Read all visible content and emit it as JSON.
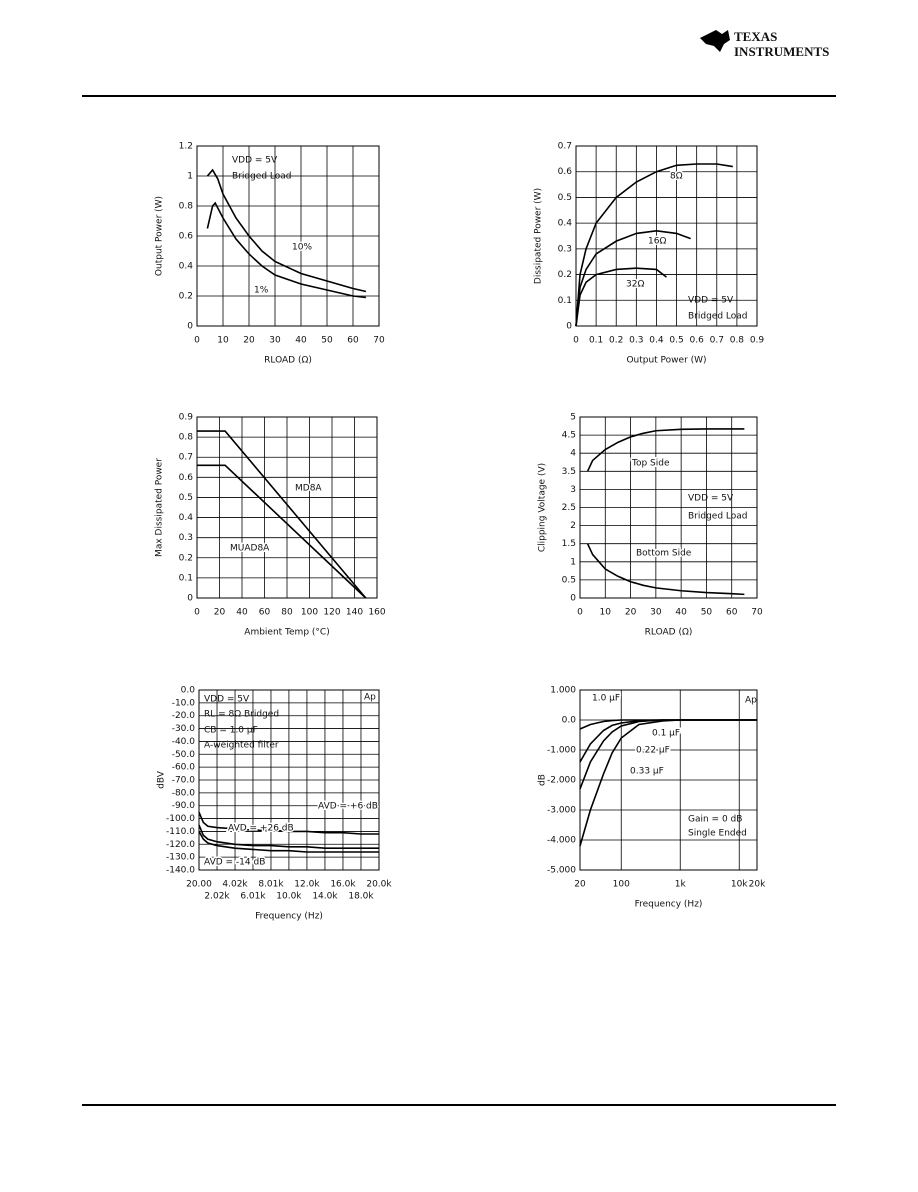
{
  "header": {
    "logo_line1": "TEXAS",
    "logo_line2": "INSTRUMENTS"
  },
  "chart_data": [
    {
      "type": "line",
      "ylabel": "Output Power (W)",
      "xlabel": "RLOAD (Ω)",
      "annotations": [
        "VDD = 5V",
        "Bridged Load"
      ],
      "xlim": [
        0,
        70
      ],
      "xticks": [
        0,
        10,
        20,
        30,
        40,
        50,
        60,
        70
      ],
      "ylim": [
        0,
        1.2
      ],
      "yticks": [
        0,
        0.2,
        0.4,
        0.6,
        0.8,
        1,
        1.2
      ],
      "grid": true,
      "series": [
        {
          "name": "10%",
          "color": "#000000",
          "x": [
            4,
            6,
            8,
            10,
            15,
            20,
            25,
            30,
            40,
            50,
            60,
            65
          ],
          "values": [
            1.0,
            1.04,
            0.98,
            0.88,
            0.72,
            0.6,
            0.5,
            0.43,
            0.35,
            0.3,
            0.25,
            0.23
          ]
        },
        {
          "name": "1%",
          "color": "#000000",
          "x": [
            4,
            6,
            7,
            10,
            15,
            20,
            25,
            30,
            40,
            50,
            60,
            65
          ],
          "values": [
            0.65,
            0.8,
            0.82,
            0.72,
            0.58,
            0.48,
            0.4,
            0.34,
            0.28,
            0.24,
            0.2,
            0.19
          ]
        }
      ]
    },
    {
      "type": "line",
      "ylabel": "Dissipated Power (W)",
      "xlabel": "Output Power (W)",
      "annotations": [
        "VDD = 5V",
        "Bridged Load"
      ],
      "xlim": [
        0,
        0.9
      ],
      "xticks": [
        0,
        0.1,
        0.2,
        0.3,
        0.4,
        0.5,
        0.6,
        0.7,
        0.8,
        0.9
      ],
      "ylim": [
        0,
        0.7
      ],
      "yticks": [
        0,
        0.1,
        0.2,
        0.3,
        0.4,
        0.5,
        0.6,
        0.7
      ],
      "grid": true,
      "series": [
        {
          "name": "8Ω",
          "color": "#000000",
          "x": [
            0,
            0.02,
            0.05,
            0.1,
            0.2,
            0.3,
            0.4,
            0.5,
            0.6,
            0.7,
            0.78
          ],
          "values": [
            0,
            0.2,
            0.3,
            0.4,
            0.5,
            0.56,
            0.6,
            0.625,
            0.63,
            0.63,
            0.62
          ]
        },
        {
          "name": "16Ω",
          "color": "#000000",
          "x": [
            0,
            0.02,
            0.05,
            0.1,
            0.2,
            0.3,
            0.4,
            0.5,
            0.57
          ],
          "values": [
            0,
            0.15,
            0.22,
            0.28,
            0.33,
            0.36,
            0.37,
            0.36,
            0.34
          ]
        },
        {
          "name": "32Ω",
          "color": "#000000",
          "x": [
            0,
            0.02,
            0.05,
            0.1,
            0.2,
            0.3,
            0.4,
            0.45
          ],
          "values": [
            0,
            0.12,
            0.17,
            0.2,
            0.22,
            0.225,
            0.22,
            0.19
          ]
        }
      ]
    },
    {
      "type": "line",
      "ylabel": "Max Dissipated Power",
      "xlabel": "Ambient Temp (°C)",
      "annotations": [],
      "xlim": [
        0,
        160
      ],
      "xticks": [
        0,
        20,
        40,
        60,
        80,
        100,
        120,
        140,
        160
      ],
      "ylim": [
        0,
        0.9
      ],
      "yticks": [
        0,
        0.1,
        0.2,
        0.3,
        0.4,
        0.5,
        0.6,
        0.7,
        0.8,
        0.9
      ],
      "grid": true,
      "series": [
        {
          "name": "MD8A",
          "color": "#000000",
          "x": [
            0,
            25,
            150
          ],
          "values": [
            0.83,
            0.83,
            0
          ]
        },
        {
          "name": "MUAD8A",
          "color": "#000000",
          "x": [
            0,
            25,
            150
          ],
          "values": [
            0.66,
            0.66,
            0
          ]
        }
      ]
    },
    {
      "type": "line",
      "ylabel": "Clipping Voltage (V)",
      "xlabel": "RLOAD (Ω)",
      "annotations": [
        "VDD = 5V",
        "Bridged Load"
      ],
      "xlim": [
        0,
        70
      ],
      "xticks": [
        0,
        10,
        20,
        30,
        40,
        50,
        60,
        70
      ],
      "ylim": [
        0,
        5
      ],
      "yticks": [
        0,
        0.5,
        1,
        1.5,
        2,
        2.5,
        3,
        3.5,
        4,
        4.5,
        5
      ],
      "grid": true,
      "series": [
        {
          "name": "Top Side",
          "color": "#000000",
          "x": [
            3,
            5,
            10,
            15,
            20,
            25,
            30,
            40,
            50,
            60,
            65
          ],
          "values": [
            3.5,
            3.8,
            4.1,
            4.3,
            4.45,
            4.55,
            4.62,
            4.66,
            4.67,
            4.67,
            4.67
          ]
        },
        {
          "name": "Bottom Side",
          "color": "#000000",
          "x": [
            3,
            5,
            10,
            15,
            20,
            25,
            30,
            40,
            50,
            60,
            65
          ],
          "values": [
            1.5,
            1.2,
            0.8,
            0.6,
            0.45,
            0.35,
            0.28,
            0.2,
            0.15,
            0.12,
            0.1
          ]
        }
      ]
    },
    {
      "type": "line",
      "ylabel": "dBV",
      "xlabel": "Frequency (Hz)",
      "annotations": [
        "VDD = 5V",
        "RL = 8Ω Bridged",
        "CB = 1.0 µF",
        "A-weighted filter",
        "Ap"
      ],
      "xlim": [
        20,
        20000
      ],
      "xticks": [
        {
          "value": 20,
          "label": "20.00"
        },
        {
          "value": 2020,
          "label": "2.02k"
        },
        {
          "value": 4020,
          "label": "4.02k"
        },
        {
          "value": 6010,
          "label": "6.01k"
        },
        {
          "value": 8010,
          "label": "8.01k"
        },
        {
          "value": 10000,
          "label": "10.0k"
        },
        {
          "value": 12000,
          "label": "12.0k"
        },
        {
          "value": 14000,
          "label": "14.0k"
        },
        {
          "value": 16000,
          "label": "16.0k"
        },
        {
          "value": 18000,
          "label": "18.0k"
        },
        {
          "value": 20000,
          "label": "20.0k"
        }
      ],
      "ylim": [
        -140,
        0
      ],
      "yticks": [
        {
          "value": 0,
          "label": "0.0"
        },
        {
          "value": -10,
          "label": "-10.0"
        },
        {
          "value": -20,
          "label": "-20.0"
        },
        {
          "value": -30,
          "label": "-30.0"
        },
        {
          "value": -40,
          "label": "-40.0"
        },
        {
          "value": -50,
          "label": "-50.0"
        },
        {
          "value": -60,
          "label": "-60.0"
        },
        {
          "value": -70,
          "label": "-70.0"
        },
        {
          "value": -80,
          "label": "-80.0"
        },
        {
          "value": -90,
          "label": "-90.0"
        },
        {
          "value": -100,
          "label": "-100.0"
        },
        {
          "value": -110,
          "label": "-110.0"
        },
        {
          "value": -120,
          "label": "-120.0"
        },
        {
          "value": -130,
          "label": "-130.0"
        },
        {
          "value": -140,
          "label": "-140.0"
        }
      ],
      "grid": true,
      "series": [
        {
          "name": "AVD = +26 dB",
          "color": "#000000",
          "x": [
            20,
            500,
            1000,
            2000,
            4000,
            6000,
            8000,
            10000,
            12000,
            14000,
            16000,
            18000,
            20000
          ],
          "values": [
            -95,
            -103,
            -106,
            -107,
            -108,
            -109,
            -109,
            -110,
            -110,
            -111,
            -111,
            -112,
            -112
          ]
        },
        {
          "name": "AVD = +6 dB",
          "color": "#000000",
          "x": [
            20,
            500,
            1000,
            2000,
            4000,
            6000,
            8000,
            10000,
            12000,
            14000,
            16000,
            18000,
            20000
          ],
          "values": [
            -105,
            -113,
            -116,
            -118,
            -120,
            -121,
            -121,
            -122,
            -122,
            -123,
            -123,
            -123,
            -123
          ]
        },
        {
          "name": "AVD = -14 dB",
          "color": "#000000",
          "x": [
            20,
            500,
            1000,
            2000,
            4000,
            6000,
            8000,
            10000,
            12000,
            14000,
            16000,
            18000,
            20000
          ],
          "values": [
            -110,
            -116,
            -119,
            -121,
            -123,
            -124,
            -125,
            -125,
            -126,
            -126,
            -126,
            -126,
            -126
          ]
        }
      ]
    },
    {
      "type": "line",
      "ylabel": "dB",
      "xlabel": "Frequency (Hz)",
      "annotations": [
        "Gain = 0 dB",
        "Single Ended",
        "Ap"
      ],
      "xlog": true,
      "xlim": [
        20,
        20000
      ],
      "xticks": [
        20,
        100,
        {
          "value": 1000,
          "label": "1k"
        },
        {
          "value": 10000,
          "label": "10k"
        },
        {
          "value": 20000,
          "label": "20k"
        }
      ],
      "ylim": [
        -5,
        1
      ],
      "yticks": [
        {
          "value": 1,
          "label": "1.000"
        },
        {
          "value": 0,
          "label": "0.0"
        },
        {
          "value": -1,
          "label": "-1.000"
        },
        {
          "value": -2,
          "label": "-2.000"
        },
        {
          "value": -3,
          "label": "-3.000"
        },
        {
          "value": -4,
          "label": "-4.000"
        },
        {
          "value": -5,
          "label": "-5.000"
        }
      ],
      "grid": true,
      "series": [
        {
          "name": "0.1 µF",
          "color": "#000000",
          "x": [
            20,
            30,
            50,
            70,
            100,
            200,
            500,
            1000,
            20000
          ],
          "values": [
            -4.2,
            -3.0,
            -1.8,
            -1.1,
            -0.6,
            -0.15,
            -0.03,
            0,
            0
          ]
        },
        {
          "name": "0.22 µF",
          "color": "#000000",
          "x": [
            20,
            30,
            50,
            70,
            100,
            200,
            500,
            1000,
            20000
          ],
          "values": [
            -2.3,
            -1.4,
            -0.7,
            -0.4,
            -0.2,
            -0.05,
            0,
            0,
            0
          ]
        },
        {
          "name": "0.33 µF",
          "color": "#000000",
          "x": [
            20,
            30,
            50,
            70,
            100,
            200,
            500,
            1000,
            20000
          ],
          "values": [
            -1.4,
            -0.8,
            -0.35,
            -0.18,
            -0.1,
            -0.02,
            0,
            0,
            0
          ]
        },
        {
          "name": "1.0 µF",
          "color": "#000000",
          "x": [
            20,
            30,
            50,
            70,
            100,
            200,
            500,
            1000,
            20000
          ],
          "values": [
            -0.3,
            -0.15,
            -0.05,
            -0.02,
            0,
            0,
            0,
            0,
            0
          ]
        }
      ]
    }
  ]
}
